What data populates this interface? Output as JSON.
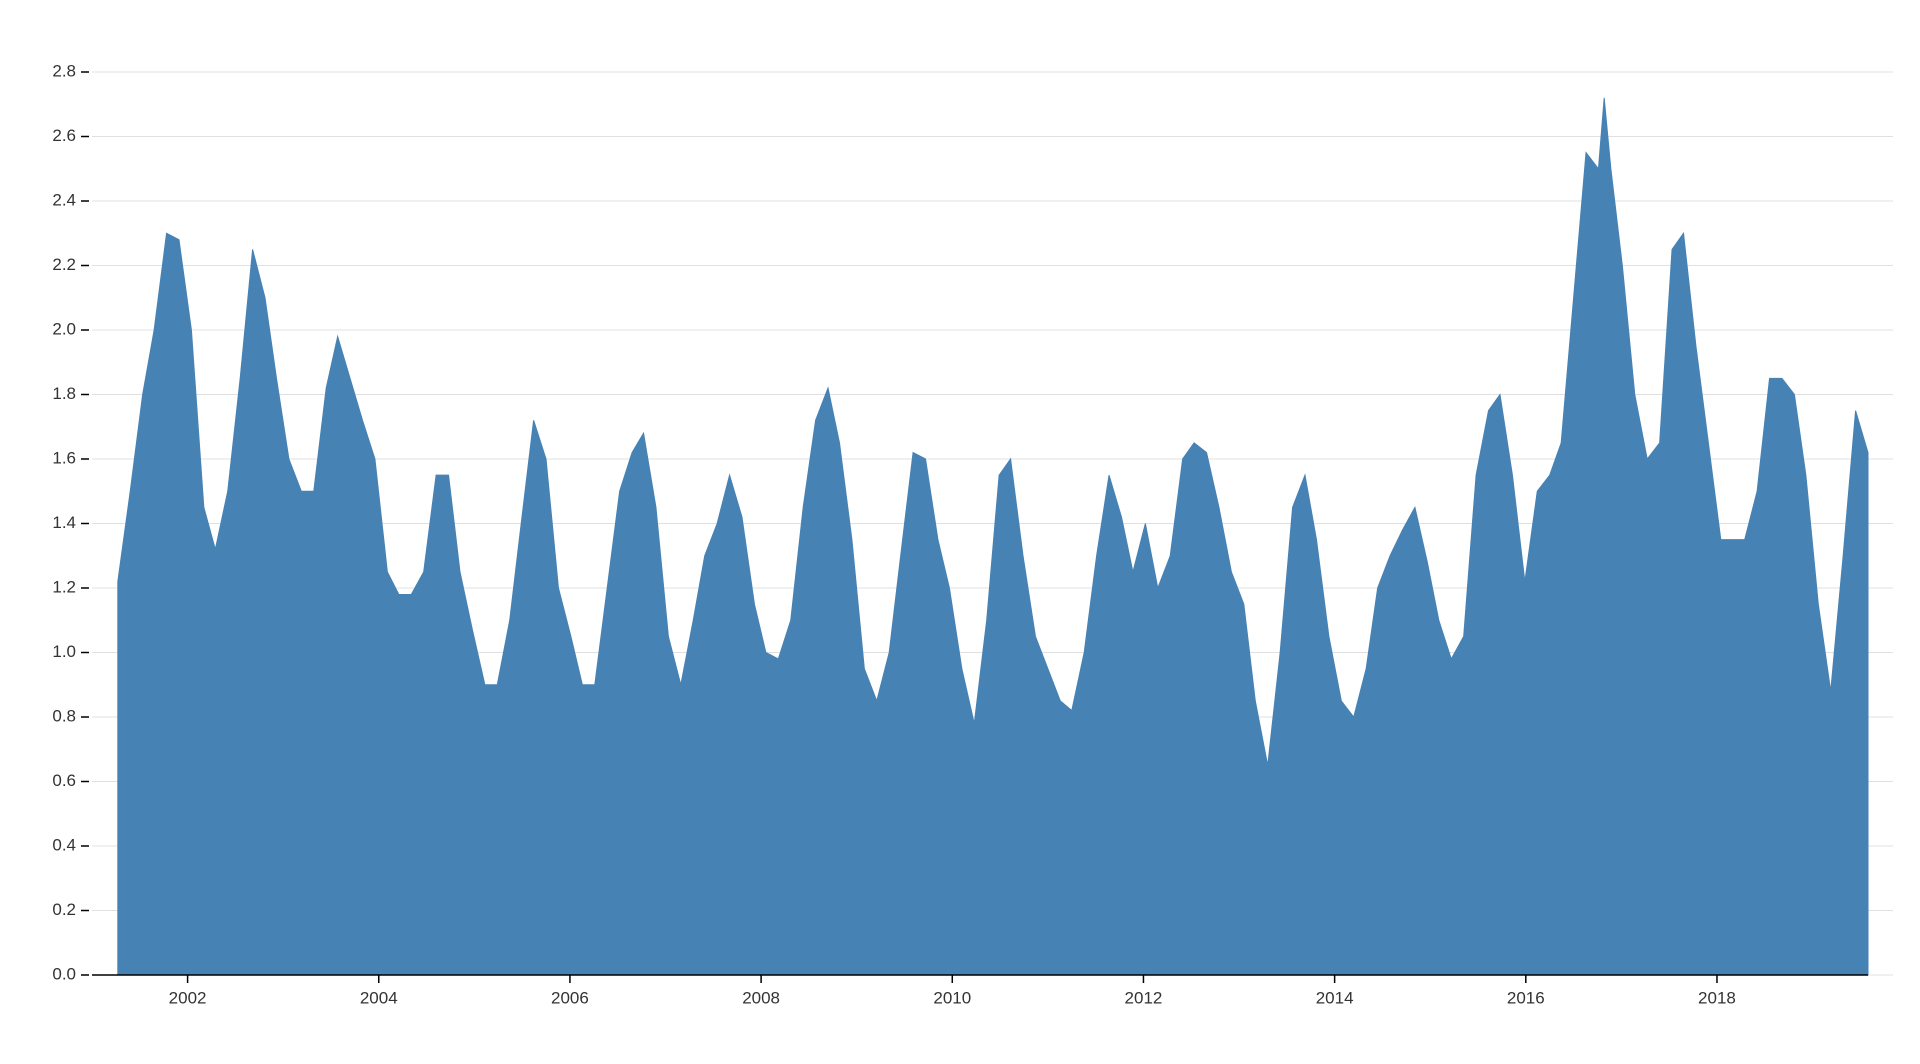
{
  "chart_data": {
    "type": "area",
    "color": "#4682b4",
    "grid": true,
    "xlim": [
      2001,
      2019.58
    ],
    "xticks": [
      2002,
      2004,
      2006,
      2008,
      2010,
      2012,
      2014,
      2016,
      2018
    ],
    "ylim": [
      0,
      2.8
    ],
    "yticks": [
      {
        "value": 0,
        "label": "0.0"
      },
      {
        "value": 0.2,
        "label": "0.2"
      },
      {
        "value": 0.4,
        "label": "0.4"
      },
      {
        "value": 0.6,
        "label": "0.6"
      },
      {
        "value": 0.8,
        "label": "0.8"
      },
      {
        "value": 1,
        "label": "1.0"
      },
      {
        "value": 1.2,
        "label": "1.2"
      },
      {
        "value": 1.4,
        "label": "1.4"
      },
      {
        "value": 1.6,
        "label": "1.6"
      },
      {
        "value": 1.8,
        "label": "1.8"
      },
      {
        "value": 2,
        "label": "2.0"
      },
      {
        "value": 2.2,
        "label": "2.2"
      },
      {
        "value": 2.4,
        "label": "2.4"
      },
      {
        "value": 2.6,
        "label": "2.6"
      },
      {
        "value": 2.8,
        "label": "2.8"
      }
    ],
    "x": [
      2001.27,
      2001.4,
      2001.53,
      2001.65,
      2001.78,
      2001.91,
      2002.04,
      2002.17,
      2002.29,
      2002.42,
      2002.55,
      2002.68,
      2002.81,
      2002.93,
      2003.06,
      2003.19,
      2003.32,
      2003.45,
      2003.57,
      2003.7,
      2003.83,
      2003.96,
      2004.09,
      2004.21,
      2004.34,
      2004.47,
      2004.6,
      2004.73,
      2004.85,
      2004.98,
      2005.11,
      2005.24,
      2005.37,
      2005.49,
      2005.62,
      2005.75,
      2005.88,
      2006.01,
      2006.13,
      2006.26,
      2006.39,
      2006.52,
      2006.65,
      2006.77,
      2006.9,
      2007.03,
      2007.16,
      2007.29,
      2007.41,
      2007.54,
      2007.67,
      2007.8,
      2007.93,
      2008.05,
      2008.18,
      2008.31,
      2008.44,
      2008.57,
      2008.7,
      2008.82,
      2008.95,
      2009.08,
      2009.21,
      2009.34,
      2009.46,
      2009.59,
      2009.72,
      2009.85,
      2009.97,
      2010.1,
      2010.23,
      2010.36,
      2010.49,
      2010.61,
      2010.74,
      2010.87,
      2011.0,
      2011.13,
      2011.25,
      2011.38,
      2011.51,
      2011.64,
      2011.77,
      2011.89,
      2012.02,
      2012.15,
      2012.28,
      2012.41,
      2012.53,
      2012.66,
      2012.79,
      2012.92,
      2013.05,
      2013.17,
      2013.3,
      2013.43,
      2013.56,
      2013.69,
      2013.81,
      2013.94,
      2014.07,
      2014.2,
      2014.33,
      2014.45,
      2014.58,
      2014.71,
      2014.84,
      2014.97,
      2015.09,
      2015.22,
      2015.35,
      2015.48,
      2015.61,
      2015.73,
      2015.86,
      2015.99,
      2016.12,
      2016.25,
      2016.37,
      2016.5,
      2016.63,
      2016.76,
      2016.82,
      2016.89,
      2017.01,
      2017.14,
      2017.27,
      2017.4,
      2017.53,
      2017.65,
      2017.78,
      2017.91,
      2018.04,
      2018.17,
      2018.29,
      2018.42,
      2018.55,
      2018.68,
      2018.81,
      2018.93,
      2019.06,
      2019.19,
      2019.32,
      2019.45,
      2019.58
    ],
    "values": [
      1.22,
      1.5,
      1.8,
      2.0,
      2.3,
      2.28,
      2.0,
      1.45,
      1.32,
      1.5,
      1.85,
      2.25,
      2.1,
      1.85,
      1.6,
      1.5,
      1.5,
      1.82,
      1.98,
      1.85,
      1.72,
      1.6,
      1.25,
      1.18,
      1.18,
      1.25,
      1.55,
      1.55,
      1.25,
      1.07,
      0.9,
      0.9,
      1.1,
      1.4,
      1.72,
      1.6,
      1.2,
      1.05,
      0.9,
      0.9,
      1.2,
      1.5,
      1.62,
      1.68,
      1.45,
      1.05,
      0.9,
      1.1,
      1.3,
      1.4,
      1.55,
      1.42,
      1.15,
      1.0,
      0.98,
      1.1,
      1.45,
      1.72,
      1.82,
      1.65,
      1.35,
      0.95,
      0.85,
      1.0,
      1.3,
      1.62,
      1.6,
      1.35,
      1.2,
      0.95,
      0.78,
      1.1,
      1.55,
      1.6,
      1.3,
      1.05,
      0.95,
      0.85,
      0.82,
      1.0,
      1.3,
      1.55,
      1.42,
      1.25,
      1.4,
      1.2,
      1.3,
      1.6,
      1.65,
      1.62,
      1.45,
      1.25,
      1.15,
      0.85,
      0.65,
      1.0,
      1.45,
      1.55,
      1.35,
      1.05,
      0.85,
      0.8,
      0.95,
      1.2,
      1.3,
      1.38,
      1.45,
      1.28,
      1.1,
      0.98,
      1.05,
      1.55,
      1.75,
      1.8,
      1.55,
      1.22,
      1.5,
      1.55,
      1.65,
      2.1,
      2.55,
      2.5,
      2.72,
      2.5,
      2.2,
      1.8,
      1.6,
      1.65,
      2.25,
      2.3,
      1.95,
      1.65,
      1.35,
      1.35,
      1.35,
      1.5,
      1.85,
      1.85,
      1.8,
      1.55,
      1.15,
      0.88,
      1.3,
      1.75,
      1.62
    ]
  }
}
